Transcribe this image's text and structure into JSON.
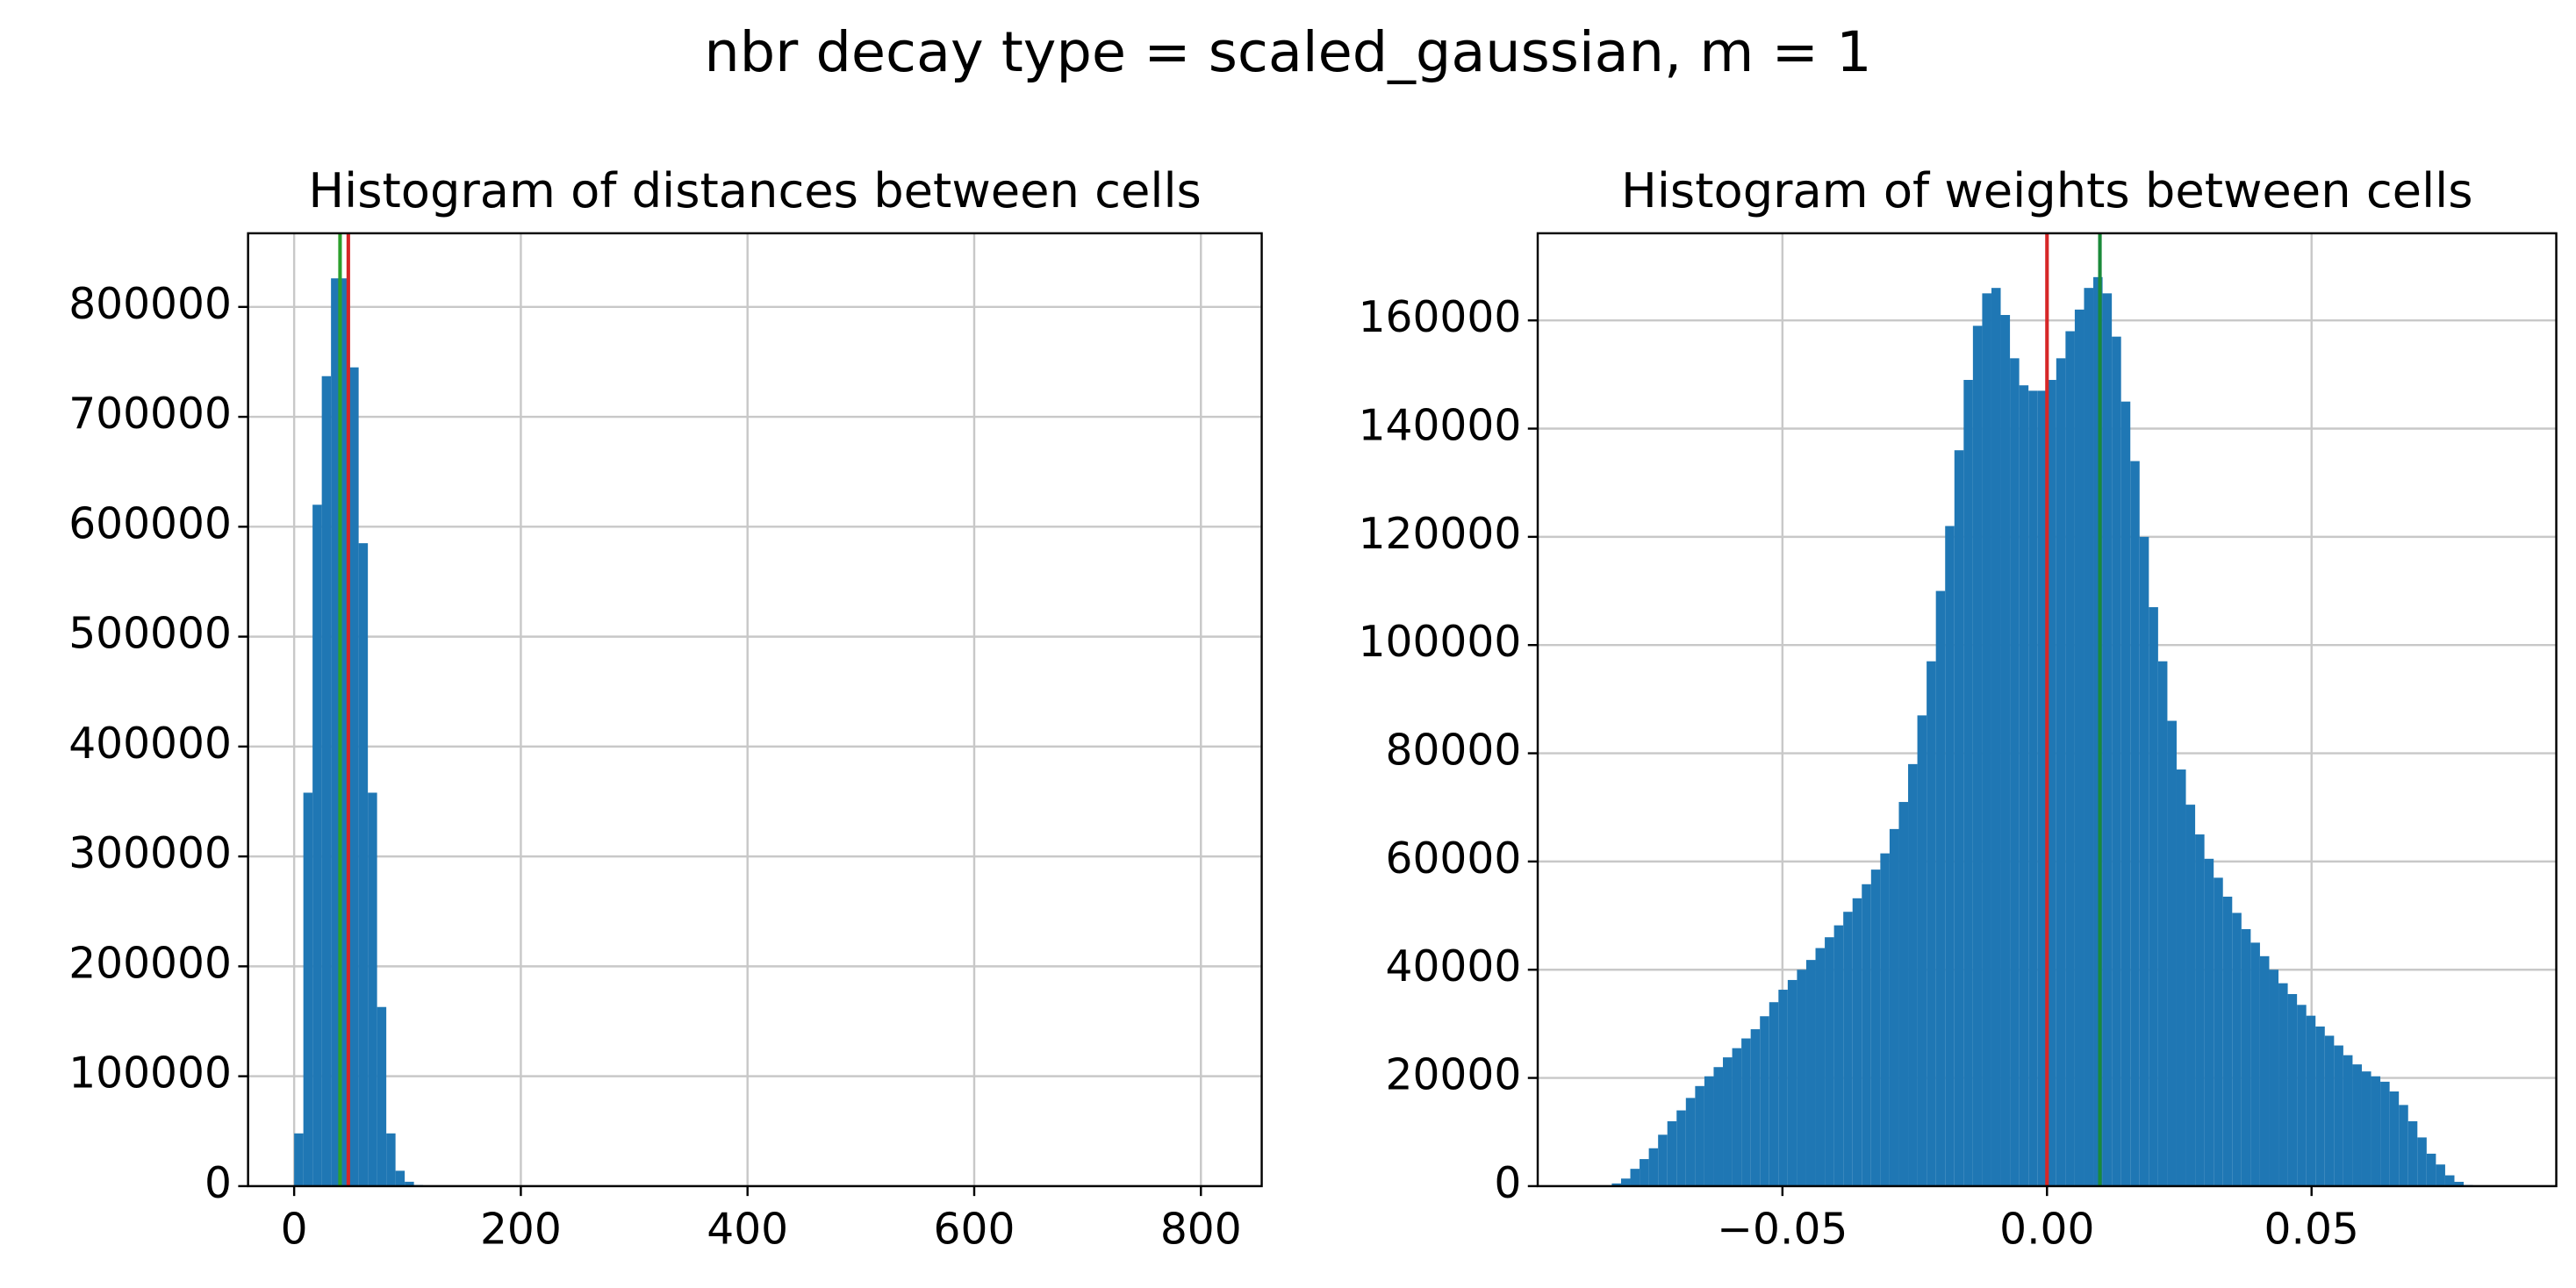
{
  "title": "nbr decay type = scaled_gaussian, m = 1",
  "chart_data": [
    {
      "type": "histogram",
      "title": "Histogram of distances between cells",
      "color": "#1f77b4",
      "grid": true,
      "bins": [
        0,
        8.13,
        16.26,
        24.39,
        32.52,
        40.65,
        48.78,
        56.91,
        65.04,
        73.17,
        81.3,
        89.43,
        97.56,
        105.69,
        113.82,
        121.95,
        130.08,
        138.21,
        146.34,
        154.47,
        162.6,
        170.73,
        178.86,
        186.99,
        195.12,
        203.25,
        211.38,
        219.51,
        227.64,
        235.77,
        243.9,
        252.03,
        260.16,
        268.29,
        276.42,
        284.55,
        292.68,
        300.81,
        308.94,
        317.07,
        325.2,
        333.33,
        341.46,
        349.59,
        357.72,
        365.85,
        373.98,
        382.11,
        390.24,
        398.37,
        406.5,
        414.63,
        422.76,
        430.89,
        439.02,
        447.15,
        455.28,
        463.41,
        471.54,
        479.67,
        487.8,
        495.93,
        504.06,
        512.19,
        520.32,
        528.45,
        536.58,
        544.71,
        552.84,
        560.97,
        569.1,
        577.23,
        585.36,
        593.49,
        601.62,
        609.75,
        617.88,
        626.01,
        634.14,
        642.27,
        650.4,
        658.53,
        666.66,
        674.79,
        682.92,
        691.05,
        699.18,
        707.31,
        715.44,
        723.57,
        731.7,
        739.83,
        747.96,
        756.09,
        764.22,
        772.35,
        780.48,
        788.61,
        796.74,
        804.87,
        813
      ],
      "values": [
        48000,
        358000,
        620000,
        737000,
        826000,
        826000,
        745000,
        585000,
        358000,
        163000,
        48000,
        14000,
        4000,
        1000,
        300,
        100,
        0,
        0,
        0,
        0,
        0,
        0,
        0,
        0,
        0,
        0,
        0,
        0,
        0,
        0,
        0,
        0,
        0,
        0,
        0,
        0,
        0,
        0,
        0,
        0,
        0,
        0,
        0,
        0,
        0,
        0,
        0,
        0,
        0,
        0,
        0,
        0,
        0,
        0,
        0,
        0,
        0,
        0,
        0,
        0,
        0,
        0,
        0,
        0,
        0,
        0,
        0,
        0,
        0,
        0,
        0,
        0,
        0,
        0,
        0,
        0,
        0,
        0,
        0,
        0,
        0,
        0,
        0,
        0,
        0,
        0,
        0,
        0,
        0,
        0,
        0,
        0,
        0,
        0,
        0,
        0,
        0,
        0,
        0,
        0
      ],
      "xlim": [
        -40.65,
        853.65
      ],
      "xticks": [
        0,
        200,
        400,
        600,
        800
      ],
      "ylim": [
        0,
        867000
      ],
      "yticks": [
        0,
        100000,
        200000,
        300000,
        400000,
        500000,
        600000,
        700000,
        800000
      ],
      "vlines": [
        {
          "value": 40.5,
          "color": "#2ca02c"
        },
        {
          "value": 47.8,
          "color": "#d62728"
        }
      ]
    },
    {
      "type": "histogram",
      "title": "Histogram of weights between cells",
      "color": "#1f77b4",
      "grid": true,
      "bins": [
        -0.0875,
        -0.08575,
        -0.084,
        -0.08225,
        -0.0805,
        -0.07875,
        -0.077,
        -0.07525,
        -0.0735,
        -0.07175,
        -0.07,
        -0.06825,
        -0.0665,
        -0.06475,
        -0.063,
        -0.06125,
        -0.0595,
        -0.05775,
        -0.056,
        -0.05425,
        -0.0525,
        -0.05075,
        -0.049,
        -0.04725,
        -0.0455,
        -0.04375,
        -0.042,
        -0.04025,
        -0.0385,
        -0.03675,
        -0.035,
        -0.03325,
        -0.0315,
        -0.02975,
        -0.028,
        -0.02625,
        -0.0245,
        -0.02275,
        -0.021,
        -0.01925,
        -0.0175,
        -0.01575,
        -0.014,
        -0.01225,
        -0.0105,
        -0.00875,
        -0.007,
        -0.00525,
        -0.0035,
        -0.00175,
        0,
        0.00175,
        0.0035,
        0.00525,
        0.007,
        0.00875,
        0.0105,
        0.01225,
        0.014,
        0.01575,
        0.0175,
        0.01925,
        0.021,
        0.02275,
        0.0245,
        0.02625,
        0.028,
        0.02975,
        0.0315,
        0.03325,
        0.035,
        0.03675,
        0.0385,
        0.04025,
        0.042,
        0.04375,
        0.0455,
        0.04725,
        0.049,
        0.05075,
        0.0525,
        0.05425,
        0.056,
        0.05775,
        0.0595,
        0.06125,
        0.063,
        0.06475,
        0.0665,
        0.06825,
        0.07,
        0.07175,
        0.0735,
        0.07525,
        0.077,
        0.07875,
        0.0805,
        0.08225,
        0.084,
        0.08575,
        0.0875
      ],
      "values": [
        0,
        0,
        0,
        500,
        1400,
        3200,
        5000,
        7000,
        9500,
        12000,
        14000,
        16300,
        18500,
        20300,
        22000,
        23800,
        25500,
        27300,
        29000,
        31400,
        34000,
        36300,
        38100,
        40000,
        41800,
        44000,
        46000,
        48200,
        50700,
        53200,
        55800,
        58500,
        61500,
        66000,
        71000,
        78000,
        87000,
        97000,
        110000,
        122000,
        136000,
        149000,
        159000,
        165000,
        166000,
        161000,
        153000,
        148000,
        147000,
        147000,
        149000,
        153000,
        158000,
        162000,
        166000,
        168000,
        165000,
        157000,
        145000,
        134000,
        120000,
        107000,
        97000,
        86000,
        77000,
        70500,
        65000,
        60500,
        57000,
        53500,
        50500,
        47500,
        45000,
        42500,
        40000,
        37500,
        35500,
        33500,
        31500,
        29500,
        27800,
        26000,
        24200,
        22500,
        21200,
        20300,
        19300,
        17500,
        15000,
        12000,
        9000,
        6000,
        4000,
        2000,
        800,
        200,
        0,
        0,
        0,
        0
      ],
      "xlim": [
        -0.09625,
        0.09625
      ],
      "xticks": [
        {
          "value": -0.05,
          "label": "−0.05"
        },
        {
          "value": 0,
          "label": "0.00"
        },
        {
          "value": 0.05,
          "label": "0.05"
        }
      ],
      "ylim": [
        0,
        176100
      ],
      "yticks": [
        0,
        20000,
        40000,
        60000,
        80000,
        100000,
        120000,
        140000,
        160000
      ],
      "vlines": [
        {
          "value": 0,
          "color": "#d62728"
        },
        {
          "value": 0.01,
          "color": "#1a8a3a"
        }
      ]
    }
  ]
}
